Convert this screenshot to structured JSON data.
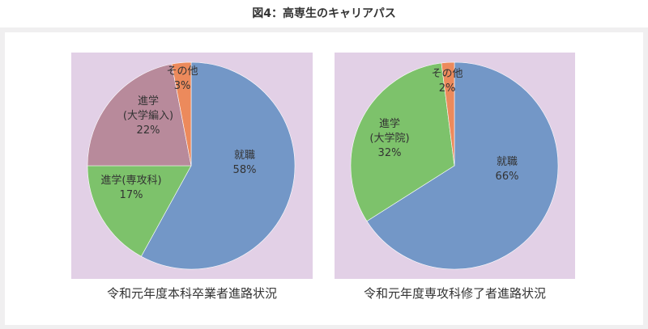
{
  "figure": {
    "title": "図4：高専生のキャリアパス"
  },
  "colors": {
    "panel_bg": "#e2d0e6",
    "frame_bg": "#f0eff0",
    "employment": "#7397c7",
    "grad_school": "#7dc26b",
    "advanced_course": "#7dc26b",
    "university_transfer": "#b88a9b",
    "other": "#ec8a5c"
  },
  "chart_data": [
    {
      "type": "pie",
      "caption": "令和元年度本科卒業者進路状況",
      "slices": [
        {
          "label": "就職",
          "value": 58,
          "value_label": "58%",
          "color": "#7397c7"
        },
        {
          "label": "進学(専攻科)",
          "value": 17,
          "value_label": "17%",
          "color": "#7dc26b"
        },
        {
          "label": "進学\n(大学編入)",
          "value": 22,
          "value_label": "22%",
          "color": "#b88a9b"
        },
        {
          "label": "その他",
          "value": 3,
          "value_label": "3%",
          "color": "#ec8a5c"
        }
      ]
    },
    {
      "type": "pie",
      "caption": "令和元年度専攻科修了者進路状況",
      "slices": [
        {
          "label": "就職",
          "value": 66,
          "value_label": "66%",
          "color": "#7397c7"
        },
        {
          "label": "進学\n(大学院)",
          "value": 32,
          "value_label": "32%",
          "color": "#7dc26b"
        },
        {
          "label": "その他",
          "value": 2,
          "value_label": "2%",
          "color": "#ec8a5c"
        }
      ]
    }
  ]
}
